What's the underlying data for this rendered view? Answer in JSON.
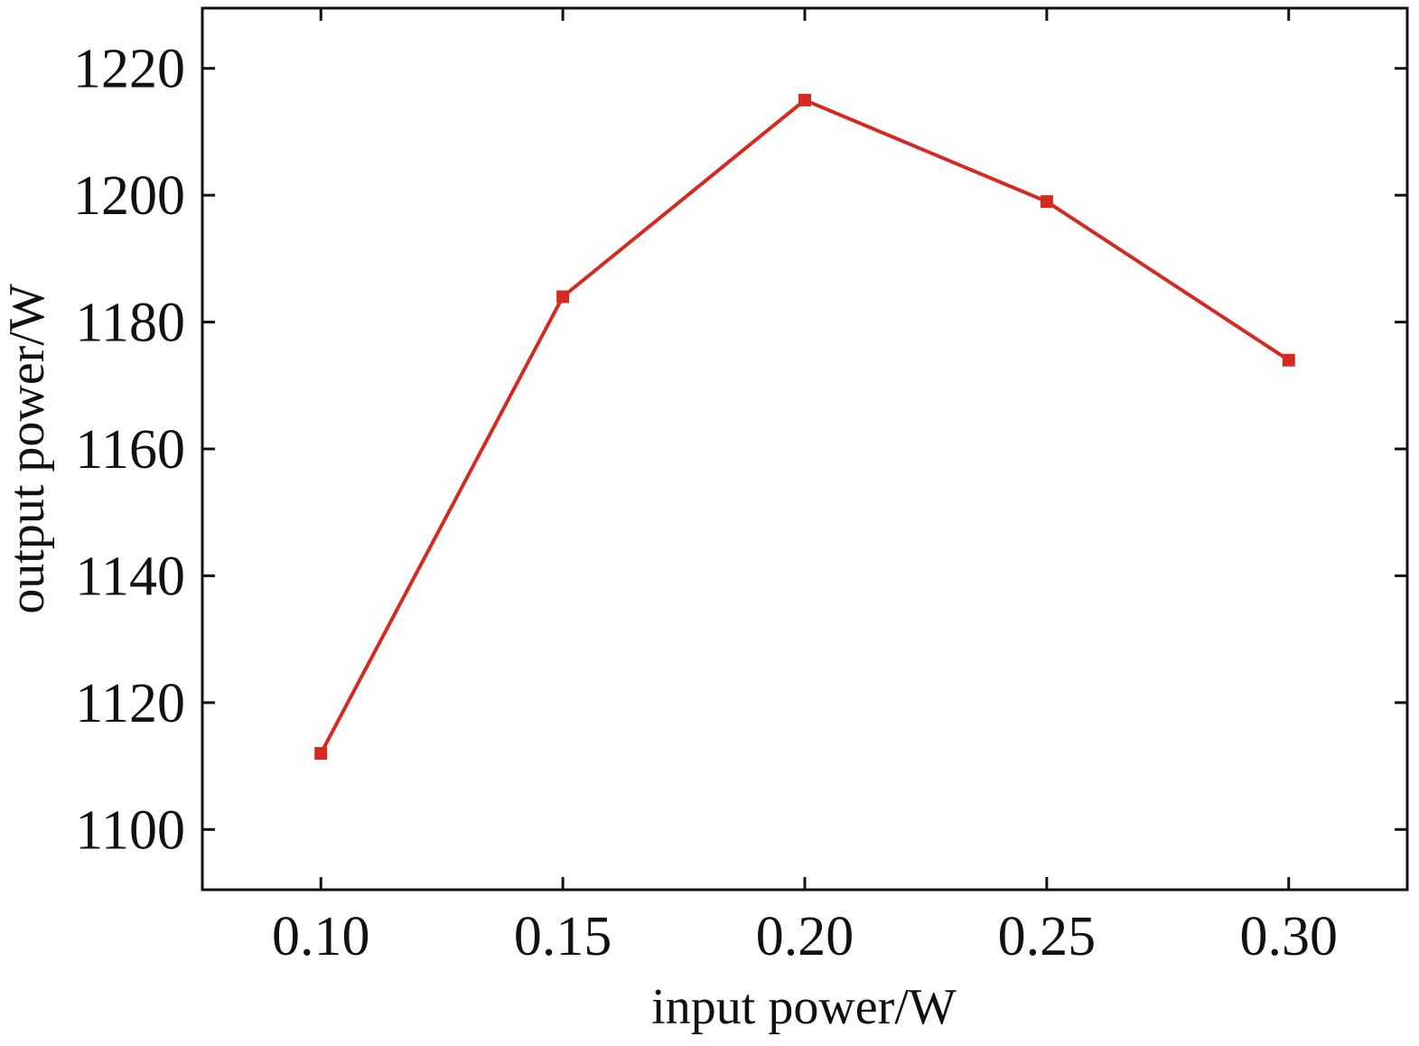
{
  "chart_data": {
    "type": "line",
    "xlabel": "input power/W",
    "ylabel": "output power/W",
    "xlim": [
      0.0755,
      0.3245
    ],
    "ylim": [
      1090.5,
      1229.5
    ],
    "x_ticks": [
      "0.10",
      "0.15",
      "0.20",
      "0.25",
      "0.30"
    ],
    "y_ticks": [
      "1100",
      "1120",
      "1140",
      "1160",
      "1180",
      "1200",
      "1220"
    ],
    "series": [
      {
        "x": [
          0.1,
          0.15,
          0.2,
          0.25,
          0.3
        ],
        "y": [
          1112,
          1184,
          1215,
          1199,
          1174
        ],
        "color": "#d42a22",
        "marker": "square"
      }
    ],
    "grid": false,
    "legend": "none"
  }
}
